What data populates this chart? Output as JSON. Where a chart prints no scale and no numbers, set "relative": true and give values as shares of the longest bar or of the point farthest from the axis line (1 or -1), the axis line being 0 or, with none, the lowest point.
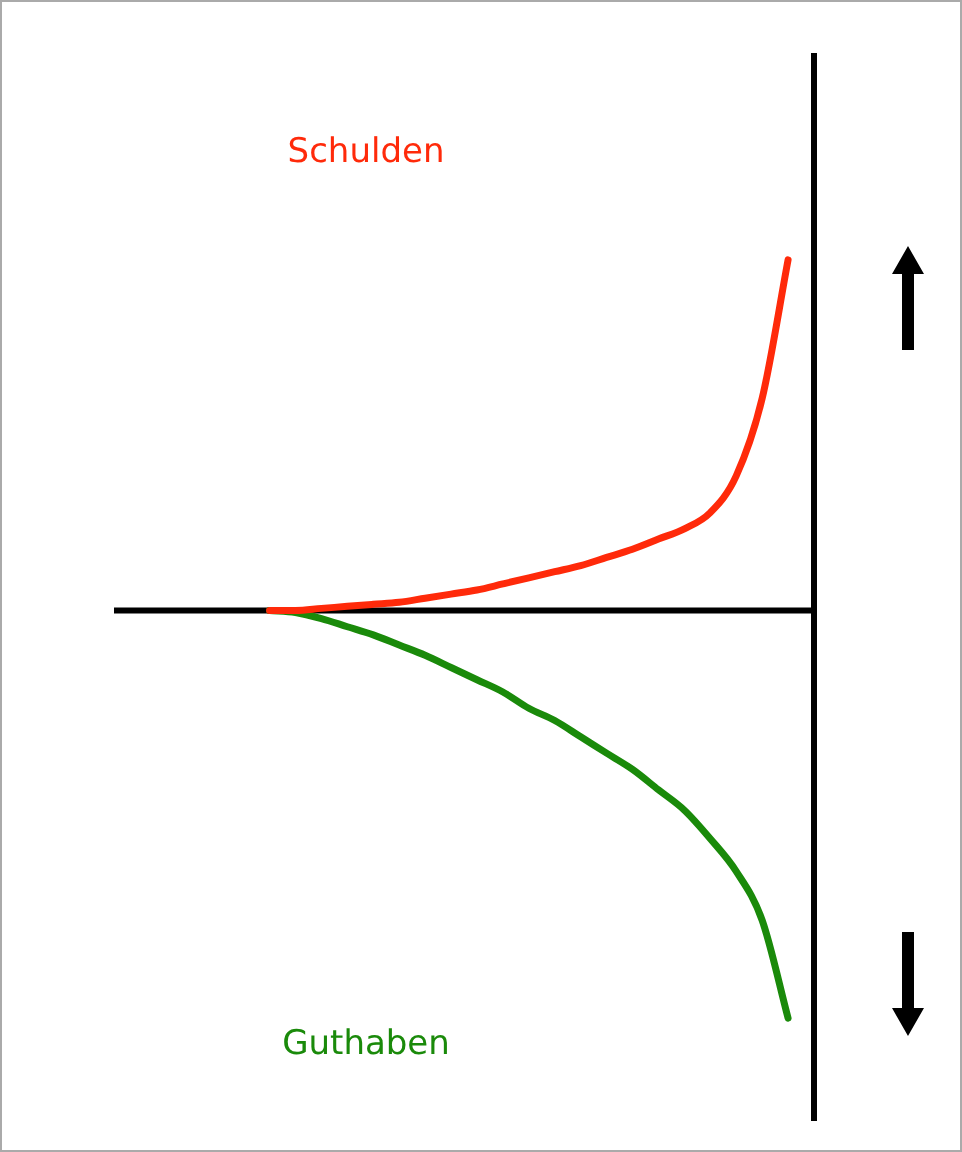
{
  "chart_data": {
    "type": "line",
    "relative": true,
    "legend": false,
    "grid": false,
    "marker": "none",
    "line_style": "solid",
    "categories": [
      null,
      null,
      null,
      null,
      null,
      null,
      null,
      null,
      null,
      null,
      null,
      null,
      null,
      null,
      null,
      null,
      null,
      null,
      null,
      null,
      null,
      null,
      null,
      null,
      null,
      null,
      null,
      null
    ],
    "series": [
      {
        "name": "Schulden",
        "color": "#ff2a0a",
        "values": [
          null,
          null,
          null,
          null,
          null,
          null,
          0,
          0,
          0.005,
          0.01,
          0.015,
          0.02,
          0.03,
          0.04,
          0.05,
          0.065,
          0.08,
          0.095,
          0.11,
          0.13,
          0.15,
          0.175,
          0.2,
          0.24,
          0.33,
          0.52,
          0.86,
          null
        ]
      },
      {
        "name": "Guthaben",
        "color": "#1a8a0a",
        "values": [
          null,
          null,
          null,
          null,
          null,
          null,
          0,
          -0.005,
          -0.02,
          -0.04,
          -0.06,
          -0.085,
          -0.11,
          -0.14,
          -0.17,
          -0.2,
          -0.24,
          -0.27,
          -0.31,
          -0.35,
          -0.39,
          -0.44,
          -0.49,
          -0.56,
          -0.64,
          -0.76,
          -1,
          null
        ]
      }
    ]
  }
}
